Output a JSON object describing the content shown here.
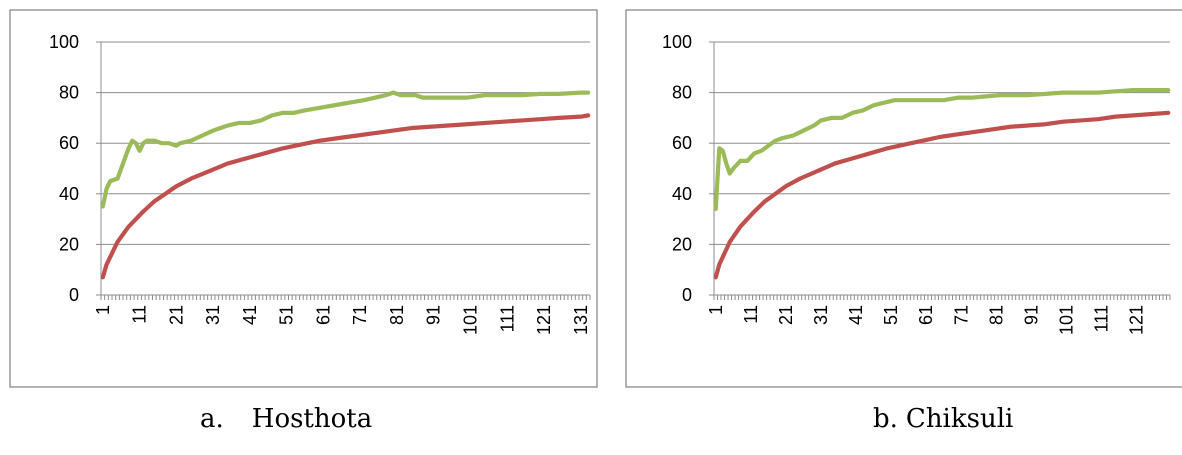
{
  "chart_data": [
    {
      "type": "line",
      "caption_letter": "a.",
      "caption_name": "Hosthota",
      "title": "",
      "xlabel": "",
      "ylabel": "",
      "ylim": [
        0,
        100
      ],
      "yticks": [
        0,
        20,
        40,
        60,
        80,
        100
      ],
      "x_count": 133,
      "xtick_labels": [
        "1",
        "11",
        "21",
        "31",
        "41",
        "51",
        "61",
        "71",
        "81",
        "91",
        "101",
        "111",
        "121",
        "131"
      ],
      "grid": true,
      "legend": "none",
      "series": [
        {
          "color": "#9bbb59",
          "points": [
            [
              1,
              35
            ],
            [
              2,
              42
            ],
            [
              3,
              45
            ],
            [
              5,
              46
            ],
            [
              6,
              50
            ],
            [
              8,
              58
            ],
            [
              9,
              61
            ],
            [
              10,
              60
            ],
            [
              11,
              57
            ],
            [
              12,
              60
            ],
            [
              13,
              61
            ],
            [
              15,
              61
            ],
            [
              17,
              60
            ],
            [
              19,
              60
            ],
            [
              21,
              59
            ],
            [
              22,
              60
            ],
            [
              25,
              61
            ],
            [
              28,
              63
            ],
            [
              31,
              65
            ],
            [
              33,
              66
            ],
            [
              35,
              67
            ],
            [
              38,
              68
            ],
            [
              41,
              68
            ],
            [
              44,
              69
            ],
            [
              47,
              71
            ],
            [
              50,
              72
            ],
            [
              53,
              72
            ],
            [
              56,
              73
            ],
            [
              60,
              74
            ],
            [
              64,
              75
            ],
            [
              68,
              76
            ],
            [
              72,
              77
            ],
            [
              75,
              78
            ],
            [
              78,
              79
            ],
            [
              80,
              80
            ],
            [
              82,
              79
            ],
            [
              84,
              79
            ],
            [
              86,
              79
            ],
            [
              88,
              78
            ],
            [
              92,
              78
            ],
            [
              96,
              78
            ],
            [
              100,
              78
            ],
            [
              105,
              79
            ],
            [
              110,
              79
            ],
            [
              115,
              79
            ],
            [
              120,
              79.5
            ],
            [
              125,
              79.5
            ],
            [
              131,
              80
            ],
            [
              133,
              80
            ]
          ]
        },
        {
          "color": "#c0504d",
          "points": [
            [
              1,
              7
            ],
            [
              2,
              12
            ],
            [
              3,
              15
            ],
            [
              4,
              18
            ],
            [
              5,
              21
            ],
            [
              6,
              23
            ],
            [
              7,
              25
            ],
            [
              8,
              27
            ],
            [
              10,
              30
            ],
            [
              12,
              33
            ],
            [
              15,
              37
            ],
            [
              18,
              40
            ],
            [
              21,
              43
            ],
            [
              25,
              46
            ],
            [
              30,
              49
            ],
            [
              35,
              52
            ],
            [
              40,
              54
            ],
            [
              45,
              56
            ],
            [
              50,
              58
            ],
            [
              55,
              59.5
            ],
            [
              60,
              61
            ],
            [
              65,
              62
            ],
            [
              70,
              63
            ],
            [
              75,
              64
            ],
            [
              80,
              65
            ],
            [
              85,
              66
            ],
            [
              90,
              66.5
            ],
            [
              95,
              67
            ],
            [
              100,
              67.5
            ],
            [
              105,
              68
            ],
            [
              110,
              68.5
            ],
            [
              115,
              69
            ],
            [
              120,
              69.5
            ],
            [
              125,
              70
            ],
            [
              131,
              70.5
            ],
            [
              133,
              71
            ]
          ]
        }
      ]
    },
    {
      "type": "line",
      "caption_letter": "b.",
      "caption_name": "Chiksuli",
      "title": "",
      "xlabel": "",
      "ylabel": "",
      "ylim": [
        0,
        100
      ],
      "yticks": [
        0,
        20,
        40,
        60,
        80,
        100
      ],
      "x_count": 130,
      "xtick_labels": [
        "1",
        "11",
        "21",
        "31",
        "41",
        "51",
        "61",
        "71",
        "81",
        "91",
        "101",
        "111",
        "121"
      ],
      "grid": true,
      "legend": "none",
      "series": [
        {
          "color": "#9bbb59",
          "points": [
            [
              1,
              34
            ],
            [
              2,
              58
            ],
            [
              3,
              57
            ],
            [
              4,
              52
            ],
            [
              5,
              48
            ],
            [
              6,
              50
            ],
            [
              8,
              53
            ],
            [
              10,
              53
            ],
            [
              12,
              56
            ],
            [
              14,
              57
            ],
            [
              16,
              59
            ],
            [
              18,
              61
            ],
            [
              20,
              62
            ],
            [
              23,
              63
            ],
            [
              26,
              65
            ],
            [
              29,
              67
            ],
            [
              31,
              69
            ],
            [
              34,
              70
            ],
            [
              37,
              70
            ],
            [
              40,
              72
            ],
            [
              43,
              73
            ],
            [
              46,
              75
            ],
            [
              49,
              76
            ],
            [
              52,
              77
            ],
            [
              55,
              77
            ],
            [
              58,
              77
            ],
            [
              62,
              77
            ],
            [
              66,
              77
            ],
            [
              70,
              78
            ],
            [
              74,
              78
            ],
            [
              78,
              78.5
            ],
            [
              82,
              79
            ],
            [
              86,
              79
            ],
            [
              90,
              79
            ],
            [
              95,
              79.5
            ],
            [
              100,
              80
            ],
            [
              105,
              80
            ],
            [
              110,
              80
            ],
            [
              115,
              80.5
            ],
            [
              120,
              81
            ],
            [
              125,
              81
            ],
            [
              130,
              81
            ]
          ]
        },
        {
          "color": "#c0504d",
          "points": [
            [
              1,
              7
            ],
            [
              2,
              12
            ],
            [
              3,
              15
            ],
            [
              4,
              18
            ],
            [
              5,
              21
            ],
            [
              6,
              23
            ],
            [
              7,
              25
            ],
            [
              8,
              27
            ],
            [
              10,
              30
            ],
            [
              12,
              33
            ],
            [
              15,
              37
            ],
            [
              18,
              40
            ],
            [
              21,
              43
            ],
            [
              25,
              46
            ],
            [
              30,
              49
            ],
            [
              35,
              52
            ],
            [
              40,
              54
            ],
            [
              45,
              56
            ],
            [
              50,
              58
            ],
            [
              55,
              59.5
            ],
            [
              60,
              61
            ],
            [
              65,
              62.5
            ],
            [
              70,
              63.5
            ],
            [
              75,
              64.5
            ],
            [
              80,
              65.5
            ],
            [
              85,
              66.5
            ],
            [
              90,
              67
            ],
            [
              95,
              67.5
            ],
            [
              100,
              68.5
            ],
            [
              105,
              69
            ],
            [
              110,
              69.5
            ],
            [
              115,
              70.5
            ],
            [
              120,
              71
            ],
            [
              125,
              71.5
            ],
            [
              130,
              72
            ]
          ]
        }
      ]
    }
  ]
}
